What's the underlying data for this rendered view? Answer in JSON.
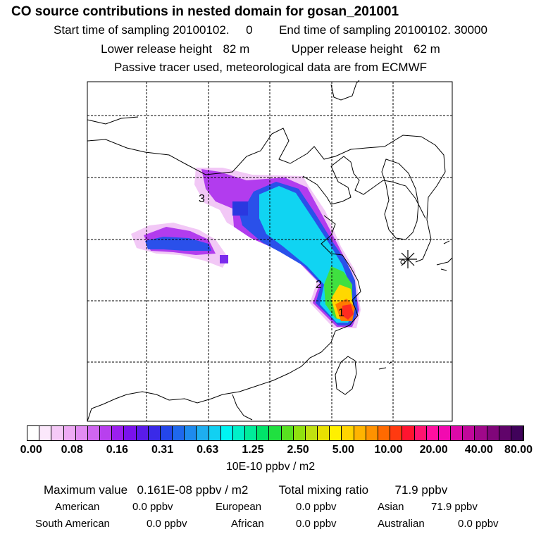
{
  "title": "CO  source contributions in nested domain for gosan_201001",
  "sampling": {
    "start_label": "Start time of sampling",
    "start_value": "20100102.     0",
    "end_label": "End time of sampling",
    "end_value": "20100102. 30000"
  },
  "release": {
    "lower_label": "Lower release height",
    "lower_value": "82 m",
    "upper_label": "Upper release height",
    "upper_value": "62 m"
  },
  "note": "Passive tracer used, meteorological data are from ECMWF",
  "markers": {
    "m1": "1",
    "m2": "2",
    "m3": "3"
  },
  "colorbar": {
    "ticks": [
      "0.00",
      "0.08",
      "0.16",
      "0.31",
      "0.63",
      "1.25",
      "2.50",
      "5.00",
      "10.00",
      "20.00",
      "40.00",
      "80.00"
    ],
    "unit": "10E-10 ppbv / m2",
    "colors": [
      "#ffffff",
      "#fbe8fb",
      "#f5c9f7",
      "#eeaaf4",
      "#e28cf2",
      "#cf66f0",
      "#b840ee",
      "#9b1fee",
      "#7a12ec",
      "#5a1bea",
      "#3a2ae8",
      "#2446ea",
      "#1f68ec",
      "#1e8bee",
      "#1eaef0",
      "#12d0f2",
      "#00f4f2",
      "#00f0c8",
      "#00ec9a",
      "#00e46a",
      "#20e040",
      "#58e020",
      "#90e010",
      "#c0e010",
      "#e8e000",
      "#fff000",
      "#ffd400",
      "#ffb400",
      "#ff9200",
      "#ff6a00",
      "#ff3a10",
      "#ff1430",
      "#ff1470",
      "#ff10a0",
      "#f20ab0",
      "#dc0aa8",
      "#c0089a",
      "#a0088a",
      "#80067a",
      "#60046a",
      "#40025a"
    ]
  },
  "stats": {
    "max_label": "Maximum value",
    "max_value": "0.161E-08 ppbv / m2",
    "total_label": "Total mixing ratio",
    "total_value": "71.9 ppbv"
  },
  "contributions": [
    {
      "label": "American",
      "value": "0.0 ppbv"
    },
    {
      "label": "European",
      "value": "0.0 ppbv"
    },
    {
      "label": "Asian",
      "value": "71.9 ppbv"
    },
    {
      "label": "South American",
      "value": "0.0 ppbv"
    },
    {
      "label": "African",
      "value": "0.0 ppbv"
    },
    {
      "label": "Australian",
      "value": "0.0 ppbv"
    }
  ]
}
